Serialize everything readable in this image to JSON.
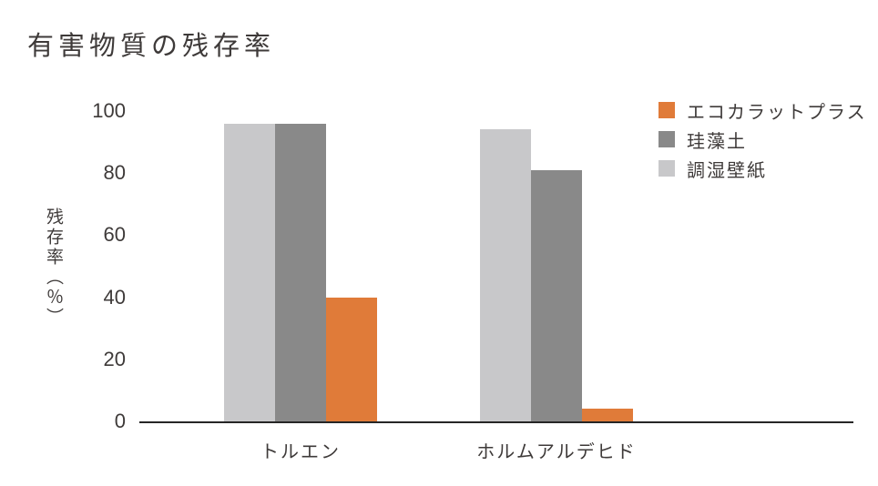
{
  "chart_data": {
    "type": "bar",
    "title": "有害物質の残存率",
    "xlabel": "",
    "ylabel": "残存率（％）",
    "categories": [
      "トルエン",
      "ホルムアルデヒド"
    ],
    "series": [
      {
        "name": "エコカラットプラス",
        "color": "#e07b39",
        "values": [
          40,
          4
        ]
      },
      {
        "name": "珪藻土",
        "color": "#898989",
        "values": [
          96,
          81
        ]
      },
      {
        "name": "調湿壁紙",
        "color": "#c8c8ca",
        "values": [
          96,
          94
        ]
      }
    ],
    "bar_draw_order": "reverse-of-legend",
    "ylim": [
      0,
      100
    ],
    "yticks": [
      0,
      20,
      40,
      60,
      80,
      100
    ],
    "grid": false,
    "legend_position": "top-right",
    "colors": {
      "background": "#ffffff",
      "text": "#3e3a39",
      "axis": "#262626"
    }
  }
}
